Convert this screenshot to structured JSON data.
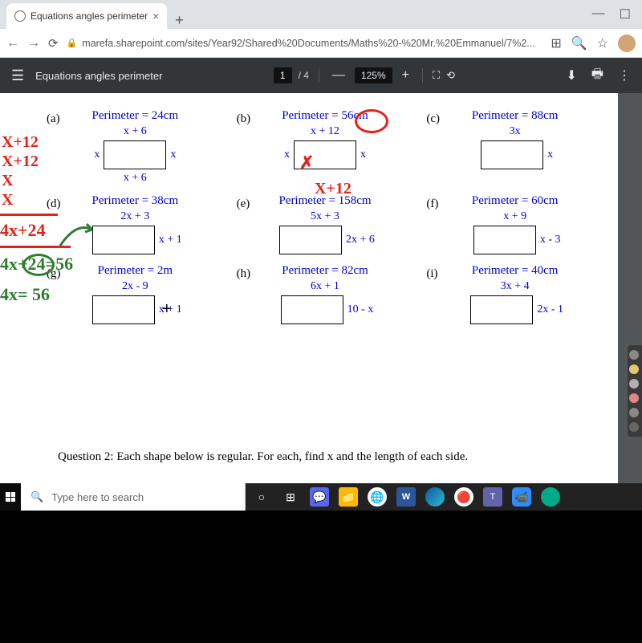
{
  "browser": {
    "tab_title": "Equations angles perimeter",
    "url": "marefa.sharepoint.com/sites/Year92/Shared%20Documents/Maths%20-%20Mr.%20Emmanuel/7%2..."
  },
  "pdf": {
    "title": "Equations angles perimeter",
    "page_current": "1",
    "page_total": "/ 4",
    "zoom": "125%"
  },
  "problems": [
    {
      "letter": "(a)",
      "peri": "Perimeter = 24cm",
      "top": "x + 6",
      "left": "x",
      "right": "x",
      "bot": "x + 6"
    },
    {
      "letter": "(b)",
      "peri": "Perimeter = 56cm",
      "top": "x + 12",
      "left": "x",
      "right": "x",
      "bot": "x+12"
    },
    {
      "letter": "(c)",
      "peri": "Perimeter = 88cm",
      "top": "3x",
      "left": "",
      "right": "x",
      "bot": ""
    },
    {
      "letter": "(d)",
      "peri": "Perimeter = 38cm",
      "top": "2x + 3",
      "left": "",
      "right": "x + 1",
      "bot": ""
    },
    {
      "letter": "(e)",
      "peri": "Perimeter = 158cm",
      "top": "5x + 3",
      "left": "",
      "right": "2x + 6",
      "bot": ""
    },
    {
      "letter": "(f)",
      "peri": "Perimeter = 60cm",
      "top": "x + 9",
      "left": "",
      "right": "x - 3",
      "bot": ""
    },
    {
      "letter": "(g)",
      "peri": "Perimeter = 2m",
      "top": "2x - 9",
      "left": "",
      "right": "x + 1",
      "bot": ""
    },
    {
      "letter": "(h)",
      "peri": "Perimeter = 82cm",
      "top": "6x + 1",
      "left": "",
      "right": "10 - x",
      "bot": ""
    },
    {
      "letter": "(i)",
      "peri": "Perimeter = 40cm",
      "top": "3x + 4",
      "left": "",
      "right": "2x - 1",
      "bot": ""
    }
  ],
  "handwriting": {
    "l1": "X+12",
    "l2": "X+12",
    "l3": "X",
    "l4": "X",
    "l5": "4x+24",
    "l6": "4x+24=56",
    "l7": "4x= 56"
  },
  "question2": "Question 2:    Each shape below is regular. For each, find x and the length of each side.",
  "taskbar": {
    "search_placeholder": "Type here to search"
  },
  "colors": {
    "blue": "#0000cc",
    "red": "#e2231a",
    "green": "#2e7d32",
    "pdf_bar": "#323639"
  }
}
